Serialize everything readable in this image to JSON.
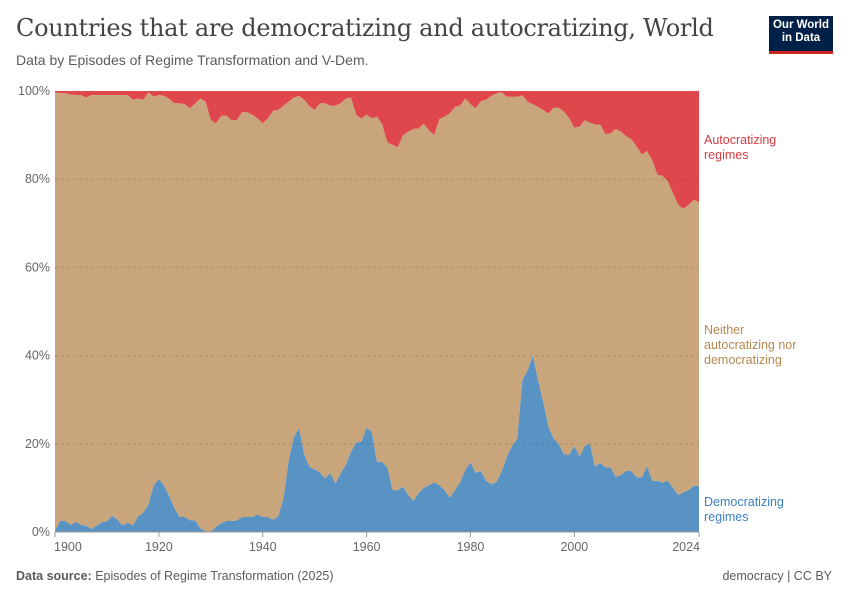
{
  "header": {
    "title": "Countries that are democratizing and autocratizing, World",
    "subtitle": "Data by Episodes of Regime Transformation and V-Dem.",
    "logo_text": "Our World in Data"
  },
  "footer": {
    "source_label": "Data source:",
    "source_text": "Episodes of Regime Transformation (2025)",
    "license": "democracy | CC BY"
  },
  "chart_data": {
    "type": "area",
    "stacked": "100%",
    "title": "Countries that are democratizing and autocratizing, World",
    "xlabel": "",
    "ylabel": "",
    "xlim": [
      1900,
      2024
    ],
    "ylim": [
      0,
      100
    ],
    "x_ticks": [
      "1900",
      "1920",
      "1940",
      "1960",
      "1980",
      "2000",
      "2024"
    ],
    "y_ticks": [
      "0%",
      "20%",
      "40%",
      "60%",
      "80%",
      "100%"
    ],
    "grid": "horizontal dashed",
    "legend": "right (inline labels)",
    "x_start": 1900,
    "series": [
      {
        "name": "Democratizing regimes",
        "color": "#5893c4",
        "label_color": "#3b7fbf",
        "values": [
          0.3,
          2.5,
          2.5,
          1.6,
          2.3,
          1.6,
          1.4,
          0.7,
          1.4,
          2.2,
          2.4,
          3.7,
          2.9,
          1.5,
          2.1,
          1.5,
          3.6,
          4.4,
          6.3,
          10.6,
          12,
          10.5,
          8.1,
          5.4,
          3.4,
          3.4,
          2.7,
          2.6,
          0.8,
          0.2,
          0,
          1.2,
          2.0,
          2.5,
          2.5,
          2.6,
          3.4,
          3.4,
          3.4,
          4.0,
          3.4,
          3.4,
          2.8,
          3.6,
          7.7,
          16.3,
          21.6,
          23.5,
          17.5,
          14.8,
          14.2,
          13.5,
          12.2,
          13.3,
          11.0,
          13.3,
          15.2,
          18.2,
          20.3,
          20.5,
          23.7,
          22.7,
          15.9,
          15.9,
          14.6,
          9.5,
          9.5,
          10.3,
          8.4,
          7.1,
          8.8,
          10.0,
          10.6,
          11.3,
          10.6,
          9.5,
          7.8,
          9.5,
          11.3,
          14.1,
          15.8,
          13.4,
          13.9,
          11.6,
          10.8,
          11.4,
          13.7,
          17.1,
          19.5,
          21.2,
          34.5,
          36.7,
          40.1,
          34.5,
          29.5,
          24.0,
          21.2,
          19.9,
          17.6,
          17.5,
          19.5,
          17.1,
          19.5,
          20.1,
          14.8,
          15.7,
          14.7,
          14.6,
          12.5,
          13.0,
          13.9,
          13.8,
          12.4,
          12.4,
          15.0,
          11.6,
          11.6,
          11.2,
          11.6,
          10.0,
          8.4,
          9.0,
          9.5,
          10.5,
          10.5
        ]
      },
      {
        "name": "Neither autocratizing nor democratizing",
        "color": "#c8a57b",
        "label_color": "#b4894f",
        "values": [
          99.4,
          97.0,
          97.0,
          97.6,
          96.8,
          97.5,
          97.1,
          98.4,
          97.7,
          96.9,
          96.7,
          95.4,
          96.2,
          97.6,
          97.0,
          96.5,
          94.7,
          93.6,
          93.4,
          88.1,
          87.1,
          88.4,
          90.1,
          91.8,
          93.8,
          93.6,
          93.4,
          94.6,
          97.5,
          97.4,
          93.4,
          91.5,
          92.4,
          91.9,
          90.9,
          90.8,
          91.8,
          91.8,
          91.2,
          89.8,
          89.3,
          90.4,
          92.7,
          92.1,
          89.0,
          81.3,
          76.9,
          75.4,
          80.5,
          81.7,
          81.5,
          83.7,
          85.0,
          83.4,
          85.7,
          83.9,
          83.1,
          80.3,
          74.3,
          73.2,
          70.9,
          71.1,
          78.3,
          76.5,
          73.8,
          78.3,
          77.7,
          79.7,
          82.4,
          84.3,
          82.7,
          82.6,
          80.5,
          78.7,
          83.0,
          84.7,
          87.1,
          86.9,
          85.4,
          84.2,
          81.2,
          82.7,
          83.8,
          86.4,
          88.1,
          88.1,
          86.0,
          81.6,
          79.2,
          77.5,
          64.5,
          60.9,
          56.9,
          61.9,
          66.2,
          70.9,
          75.0,
          76.3,
          77.7,
          76.3,
          72.2,
          74.8,
          73.9,
          72.7,
          77.6,
          76.7,
          75.5,
          75.8,
          78.9,
          77.8,
          75.8,
          75.3,
          75.0,
          73.2,
          71.4,
          72.7,
          69.4,
          69.6,
          67.9,
          66.8,
          65.8,
          64.3,
          64.7,
          64.8,
          64.3
        ]
      },
      {
        "name": "Autocratizing regimes",
        "color": "#e0474c",
        "label_color": "#d73b42",
        "values": [
          0.3,
          0.5,
          0.5,
          0.8,
          0.9,
          0.9,
          1.5,
          0.9,
          0.9,
          0.9,
          0.9,
          0.9,
          0.9,
          0.9,
          0.9,
          2.0,
          1.7,
          2.0,
          0.3,
          1.3,
          0.9,
          1.1,
          1.8,
          2.8,
          2.8,
          3.0,
          3.9,
          2.8,
          1.7,
          2.4,
          6.6,
          7.3,
          5.6,
          5.6,
          6.6,
          6.6,
          4.8,
          4.8,
          5.4,
          6.2,
          7.3,
          6.2,
          4.5,
          4.3,
          3.3,
          2.4,
          1.5,
          1.1,
          2.0,
          3.5,
          4.3,
          2.8,
          2.8,
          3.3,
          3.3,
          2.8,
          1.7,
          1.5,
          5.4,
          6.3,
          5.4,
          6.2,
          5.8,
          7.6,
          11.6,
          12.2,
          12.8,
          10.0,
          9.2,
          8.6,
          8.5,
          7.4,
          8.9,
          10.0,
          6.4,
          5.8,
          5.1,
          3.6,
          3.3,
          1.7,
          3.0,
          3.9,
          2.3,
          2.0,
          1.1,
          0.5,
          0.3,
          1.3,
          1.3,
          1.3,
          1.0,
          2.4,
          3.0,
          3.6,
          4.3,
          5.1,
          3.8,
          3.8,
          4.7,
          6.2,
          8.3,
          8.1,
          6.6,
          7.2,
          7.6,
          7.6,
          9.8,
          9.6,
          8.6,
          9.2,
          10.3,
          10.9,
          12.6,
          14.4,
          13.6,
          15.7,
          19.0,
          19.2,
          20.5,
          23.2,
          25.8,
          26.7,
          25.8,
          24.7,
          25.2
        ]
      }
    ],
    "labels": {
      "autocratizing": [
        "Autocratizing",
        "regimes"
      ],
      "neither": [
        "Neither",
        "autocratizing nor",
        "democratizing"
      ],
      "democratizing": [
        "Democratizing",
        "regimes"
      ]
    }
  }
}
